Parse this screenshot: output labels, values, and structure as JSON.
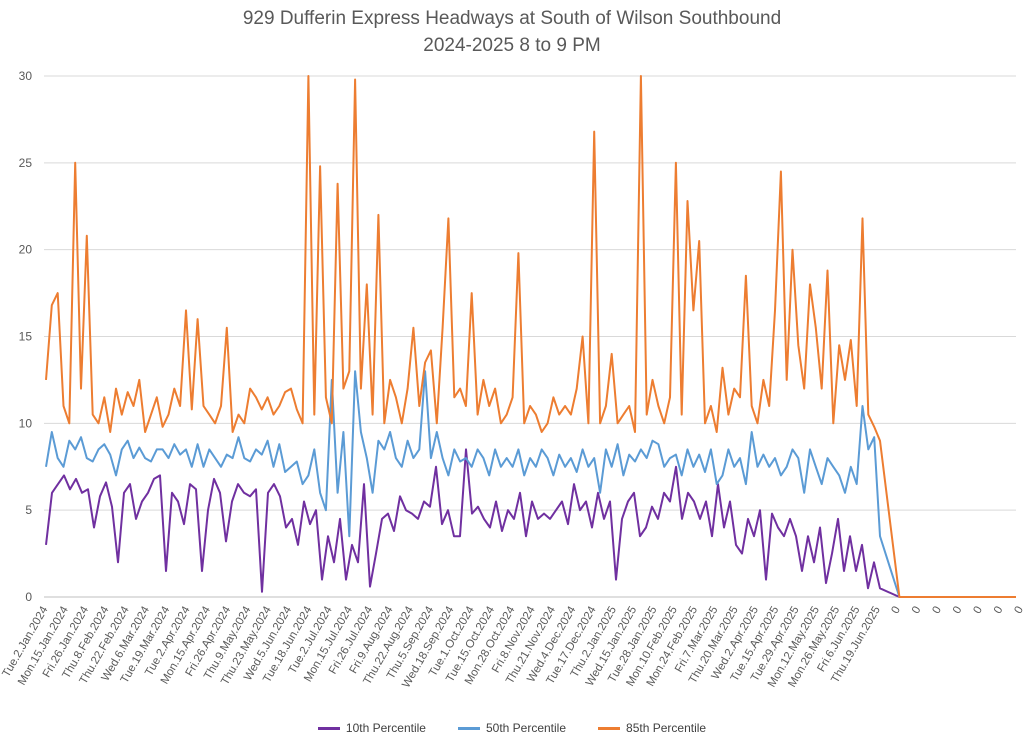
{
  "chart_data": {
    "type": "line",
    "title": "929 Dufferin Express Headways at South of Wilson Southbound",
    "subtitle": "2024-2025 8 to 9 PM",
    "xlabel": "",
    "ylabel": "",
    "ylim": [
      0,
      30
    ],
    "yticks": [
      "0",
      "5",
      "10",
      "15",
      "20",
      "25",
      "30"
    ],
    "grid": true,
    "legend_position": "bottom",
    "x_tick_labels": [
      "Tue.2.Jan.2024",
      "Mon.15.Jan.2024",
      "Fri.26.Jan.2024",
      "Thu.8.Feb.2024",
      "Thu.22.Feb.2024",
      "Wed.6.Mar.2024",
      "Tue.19.Mar.2024",
      "Tue.2.Apr.2024",
      "Mon.15.Apr.2024",
      "Fri.26.Apr.2024",
      "Thu.9.May.2024",
      "Thu.23.May.2024",
      "Wed.5.Jun.2024",
      "Tue.18.Jun.2024",
      "Tue.2.Jul.2024",
      "Mon.15.Jul.2024",
      "Fri.26.Jul.2024",
      "Fri.9.Aug.2024",
      "Thu.22.Aug.2024",
      "Thu.5.Sep.2024",
      "Wed.18.Sep.2024",
      "Tue.1.Oct.2024",
      "Tue.15.Oct.2024",
      "Mon.28.Oct.2024",
      "Fri.8.Nov.2024",
      "Thu.21.Nov.2024",
      "Wed.4.Dec.2024",
      "Tue.17.Dec.2024",
      "Thu.2.Jan.2025",
      "Wed.15.Jan.2025",
      "Tue.28.Jan.2025",
      "Mon.10.Feb.2025",
      "Mon.24.Feb.2025",
      "Fri.7.Mar.2025",
      "Thu.20.Mar.2025",
      "Wed.2.Apr.2025",
      "Tue.15.Apr.2025",
      "Tue.29.Apr.2025",
      "Mon.12.May.2025",
      "Mon.26.May.2025",
      "Fri.6.Jun.2025",
      "Thu.19.Jun.2025",
      "0",
      "0",
      "0",
      "0",
      "0",
      "0",
      "0"
    ],
    "series": [
      {
        "name": "10th Percentile",
        "color": "#7030a0",
        "values": [
          3.0,
          6.0,
          6.5,
          7.0,
          6.2,
          6.8,
          6.0,
          6.2,
          4.0,
          5.8,
          6.6,
          5.2,
          2.0,
          6.0,
          6.5,
          4.5,
          5.5,
          6.0,
          6.8,
          7.0,
          1.5,
          6.0,
          5.5,
          4.2,
          6.5,
          6.2,
          1.5,
          5.0,
          6.8,
          6.0,
          3.2,
          5.5,
          6.5,
          6.0,
          5.8,
          6.2,
          0.3,
          6.0,
          6.5,
          5.8,
          4.0,
          4.5,
          3.0,
          5.5,
          4.2,
          5.0,
          1.0,
          3.5,
          2.0,
          4.5,
          1.0,
          3.0,
          2.0,
          6.5,
          0.6,
          2.5,
          4.5,
          4.8,
          3.8,
          5.8,
          5.0,
          4.8,
          4.5,
          5.5,
          5.2,
          7.5,
          4.2,
          5.0,
          3.5,
          3.5,
          8.5,
          4.8,
          5.2,
          4.5,
          4.0,
          5.5,
          3.8,
          5.0,
          4.5,
          6.0,
          3.5,
          5.5,
          4.5,
          4.8,
          4.5,
          5.0,
          5.5,
          4.2,
          6.5,
          5.0,
          5.5,
          4.0,
          6.0,
          4.5,
          5.5,
          1.0,
          4.5,
          5.5,
          6.0,
          3.5,
          4.0,
          5.2,
          4.5,
          6.0,
          5.5,
          7.5,
          4.5,
          6.0,
          5.5,
          4.5,
          5.5,
          3.5,
          6.5,
          4.0,
          5.5,
          3.0,
          2.5,
          4.5,
          3.5,
          5.0,
          1.0,
          4.8,
          4.0,
          3.5,
          4.5,
          3.5,
          1.5,
          3.5,
          2.0,
          4.0,
          0.8,
          2.5,
          4.5,
          1.5,
          3.5,
          1.5,
          3.0,
          0.5,
          2.0,
          0.5,
          0.0,
          0.0,
          0.0,
          0.0,
          0.0,
          0.0,
          0.0
        ],
        "note_count_reference": "values resampled"
      },
      {
        "name": "50th Percentile",
        "color": "#5b9bd5",
        "values": [
          7.5,
          9.5,
          8.0,
          7.5,
          9.0,
          8.5,
          9.2,
          8.0,
          7.8,
          8.5,
          8.8,
          8.2,
          7.0,
          8.5,
          9.0,
          8.0,
          8.6,
          8.0,
          7.8,
          8.5,
          8.5,
          8.0,
          8.8,
          8.2,
          8.5,
          7.5,
          8.8,
          7.5,
          8.5,
          8.0,
          7.5,
          8.2,
          8.0,
          9.2,
          8.0,
          7.8,
          8.5,
          8.2,
          9.0,
          7.5,
          8.8,
          7.2,
          7.5,
          7.8,
          6.5,
          7.0,
          8.5,
          6.0,
          5.0,
          12.5,
          6.0,
          9.5,
          3.5,
          13.0,
          9.5,
          8.0,
          6.0,
          9.0,
          8.5,
          9.5,
          8.0,
          7.5,
          9.0,
          8.0,
          8.5,
          13.0,
          8.0,
          9.5,
          8.0,
          7.0,
          8.5,
          7.8,
          8.0,
          7.5,
          8.5,
          8.0,
          7.0,
          8.5,
          7.5,
          8.0,
          7.5,
          8.5,
          7.0,
          8.0,
          7.5,
          8.5,
          8.0,
          7.0,
          8.2,
          7.5,
          8.0,
          7.2,
          8.5,
          7.5,
          8.0,
          6.0,
          8.5,
          7.5,
          8.8,
          7.0,
          8.2,
          7.8,
          8.5,
          8.0,
          9.0,
          8.8,
          7.5,
          8.0,
          8.2,
          7.0,
          8.5,
          7.5,
          8.2,
          7.2,
          8.5,
          6.5,
          7.0,
          8.5,
          7.5,
          8.0,
          6.5,
          9.5,
          7.5,
          8.2,
          7.5,
          8.0,
          7.0,
          7.5,
          8.5,
          8.0,
          6.0,
          8.5,
          7.5,
          6.5,
          8.0,
          7.5,
          7.0,
          6.0,
          7.5,
          6.5,
          11.0,
          8.5,
          9.2,
          3.5,
          0.0,
          0.0,
          0.0,
          0.0,
          0.0,
          0.0,
          0.0
        ]
      },
      {
        "name": "85th Percentile",
        "color": "#ed7d31",
        "values": [
          12.5,
          16.8,
          17.5,
          11.0,
          10.0,
          25.0,
          12.0,
          20.8,
          10.5,
          10.0,
          11.5,
          9.5,
          12.0,
          10.5,
          11.8,
          11.0,
          12.5,
          9.5,
          10.5,
          11.5,
          9.8,
          10.5,
          12.0,
          11.0,
          16.5,
          10.8,
          16.0,
          11.0,
          10.5,
          10.0,
          11.0,
          15.5,
          9.5,
          10.5,
          10.0,
          12.0,
          11.5,
          10.8,
          11.5,
          10.5,
          11.0,
          11.8,
          12.0,
          10.8,
          10.0,
          30.0,
          10.5,
          24.8,
          11.5,
          10.0,
          23.8,
          12.0,
          13.0,
          29.8,
          12.0,
          18.0,
          10.5,
          22.0,
          10.0,
          12.5,
          11.5,
          10.0,
          12.0,
          15.5,
          11.0,
          13.5,
          14.2,
          10.0,
          15.5,
          21.8,
          11.5,
          12.0,
          11.0,
          17.5,
          10.5,
          12.5,
          11.0,
          12.0,
          10.0,
          10.5,
          11.5,
          19.8,
          10.0,
          11.0,
          10.5,
          9.5,
          10.0,
          11.5,
          10.5,
          11.0,
          10.5,
          12.0,
          15.0,
          10.0,
          26.8,
          10.0,
          11.0,
          14.0,
          10.0,
          10.5,
          11.0,
          9.5,
          30.0,
          10.5,
          12.5,
          11.0,
          10.0,
          11.5,
          25.0,
          10.5,
          22.8,
          16.5,
          20.5,
          10.0,
          11.0,
          9.5,
          13.2,
          10.5,
          12.0,
          11.5,
          18.5,
          11.0,
          10.0,
          12.5,
          11.0,
          16.5,
          24.5,
          12.5,
          20.0,
          14.5,
          12.0,
          18.0,
          15.5,
          12.0,
          18.8,
          10.0,
          14.5,
          12.5,
          14.8,
          11.0,
          21.8,
          10.5,
          9.8,
          9.0,
          0.0,
          0.0,
          0.0,
          0.0,
          0.0,
          0.0,
          0.0
        ]
      }
    ]
  }
}
